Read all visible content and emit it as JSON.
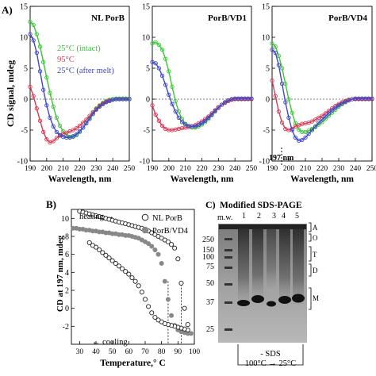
{
  "panelA": {
    "label": "A)",
    "ylabel": "CD signal, mdeg",
    "ylim": [
      -10,
      15
    ],
    "yticks": [
      "15",
      "10",
      "5",
      "0",
      "-5",
      "-10"
    ],
    "xlim": [
      190,
      250
    ],
    "xticks": [
      "190",
      "200",
      "210",
      "220",
      "230",
      "240",
      "250"
    ],
    "xlabel": "Wavelength, nm",
    "legend": [
      {
        "label": "25°C (intact)",
        "color": "#3cc43c"
      },
      {
        "label": "95°C",
        "color": "#d83a55"
      },
      {
        "label": "25°C (after melt)",
        "color": "#3f47c8"
      }
    ],
    "annotation": "197 nm",
    "plots": [
      {
        "title": "NL PorB"
      },
      {
        "title": "PorB/VD1"
      },
      {
        "title": "PorB/VD4"
      }
    ]
  },
  "panelB": {
    "label": "B)",
    "ylabel": "CD at 197 nm, mdeg",
    "xlabel": "Temperature,° C",
    "xticks": [
      "30",
      "40",
      "50",
      "60",
      "70",
      "80",
      "90",
      "100"
    ],
    "yticks": [
      "10",
      "8",
      "6",
      "4",
      "2",
      "0",
      "-2"
    ],
    "xlim": [
      25,
      100
    ],
    "ylim": [
      -4,
      11
    ],
    "heating_label": "heating →",
    "cooling_label": "← cooling",
    "legend": [
      {
        "label": "NL PorB",
        "marker": "open-circle"
      },
      {
        "label": "PorB/VD4",
        "marker": "filled-circle"
      }
    ]
  },
  "panelC": {
    "label": "C)",
    "title": "Modified SDS-PAGE",
    "lane_labels": [
      "m.w.",
      "1",
      "2",
      "3",
      "4",
      "5"
    ],
    "mw_markers": [
      "250",
      "150",
      "100",
      "75",
      "50",
      "37",
      "25"
    ],
    "bracket_labels": [
      "A",
      "O",
      "T",
      "D",
      "M"
    ],
    "condition_line1": "- SDS",
    "condition_line2": "100°C → 25°C"
  },
  "chart_data": [
    {
      "type": "line",
      "title": "NL PorB",
      "xlabel": "Wavelength, nm",
      "ylabel": "CD signal, mdeg",
      "xlim": [
        190,
        250
      ],
      "ylim": [
        -10,
        15
      ],
      "series": [
        {
          "name": "25°C (intact)",
          "x": [
            190,
            192,
            194,
            196,
            198,
            200,
            202,
            204,
            206,
            208,
            210,
            212,
            214,
            216,
            218,
            220,
            222,
            224,
            226,
            228,
            230,
            232,
            234,
            236,
            238,
            240,
            242,
            244,
            246,
            248,
            250
          ],
          "y": [
            12.5,
            12.0,
            10.5,
            8.5,
            6.0,
            3.5,
            1.0,
            -1.2,
            -3.0,
            -4.3,
            -5.2,
            -5.8,
            -6.1,
            -6.1,
            -5.8,
            -5.3,
            -4.6,
            -3.8,
            -3.0,
            -2.2,
            -1.5,
            -1.0,
            -0.6,
            -0.3,
            -0.1,
            0.0,
            0.1,
            0.1,
            0.1,
            0.1,
            0.1
          ]
        },
        {
          "name": "95°C",
          "x": [
            190,
            192,
            194,
            196,
            198,
            200,
            202,
            204,
            206,
            208,
            210,
            212,
            214,
            216,
            218,
            220,
            222,
            224,
            226,
            228,
            230,
            232,
            234,
            236,
            238,
            240,
            242,
            244,
            246,
            248,
            250
          ],
          "y": [
            2.0,
            0.5,
            -1.5,
            -3.5,
            -5.3,
            -6.5,
            -7.0,
            -6.8,
            -6.3,
            -5.9,
            -5.6,
            -5.4,
            -5.2,
            -5.0,
            -4.7,
            -4.3,
            -3.8,
            -3.3,
            -2.7,
            -2.1,
            -1.6,
            -1.1,
            -0.7,
            -0.4,
            -0.2,
            -0.1,
            0.0,
            0.0,
            0.0,
            0.0,
            0.0
          ]
        },
        {
          "name": "25°C (after melt)",
          "x": [
            190,
            192,
            194,
            196,
            198,
            200,
            202,
            204,
            206,
            208,
            210,
            212,
            214,
            216,
            218,
            220,
            222,
            224,
            226,
            228,
            230,
            232,
            234,
            236,
            238,
            240,
            242,
            244,
            246,
            248,
            250
          ],
          "y": [
            10.5,
            9.5,
            7.5,
            4.5,
            1.5,
            -1.0,
            -3.0,
            -4.4,
            -5.3,
            -5.8,
            -6.1,
            -6.2,
            -6.2,
            -6.0,
            -5.7,
            -5.2,
            -4.6,
            -3.9,
            -3.2,
            -2.4,
            -1.7,
            -1.2,
            -0.8,
            -0.5,
            -0.3,
            -0.1,
            0.0,
            0.0,
            0.0,
            0.0,
            0.0
          ]
        }
      ]
    },
    {
      "type": "line",
      "title": "PorB/VD1",
      "xlabel": "Wavelength, nm",
      "xlim": [
        190,
        250
      ],
      "ylim": [
        -10,
        15
      ],
      "series": [
        {
          "name": "25°C (intact)",
          "x": [
            190,
            192,
            194,
            196,
            198,
            200,
            202,
            204,
            206,
            208,
            210,
            212,
            214,
            216,
            218,
            220,
            222,
            224,
            226,
            228,
            230,
            232,
            234,
            236,
            238,
            240,
            242,
            244,
            246,
            248,
            250
          ],
          "y": [
            9.0,
            9.2,
            8.8,
            8.0,
            6.5,
            4.5,
            2.0,
            -0.3,
            -2.0,
            -3.2,
            -4.0,
            -4.5,
            -4.6,
            -4.6,
            -4.4,
            -4.1,
            -3.7,
            -3.2,
            -2.6,
            -2.0,
            -1.4,
            -0.9,
            -0.5,
            -0.2,
            0.0,
            0.1,
            0.1,
            0.1,
            0.1,
            0.1,
            0.1
          ]
        },
        {
          "name": "95°C",
          "x": [
            190,
            192,
            194,
            196,
            198,
            200,
            202,
            204,
            206,
            208,
            210,
            212,
            214,
            216,
            218,
            220,
            222,
            224,
            226,
            228,
            230,
            232,
            234,
            236,
            238,
            240,
            242,
            244,
            246,
            248,
            250
          ],
          "y": [
            -1.0,
            -2.5,
            -3.5,
            -4.3,
            -4.8,
            -5.0,
            -5.0,
            -4.9,
            -4.8,
            -4.7,
            -4.6,
            -4.5,
            -4.4,
            -4.2,
            -3.9,
            -3.6,
            -3.2,
            -2.8,
            -2.3,
            -1.8,
            -1.3,
            -0.9,
            -0.6,
            -0.3,
            -0.1,
            0.0,
            0.0,
            0.0,
            0.0,
            0.0,
            0.0
          ]
        },
        {
          "name": "25°C (after melt)",
          "x": [
            190,
            192,
            194,
            196,
            198,
            200,
            202,
            204,
            206,
            208,
            210,
            212,
            214,
            216,
            218,
            220,
            222,
            224,
            226,
            228,
            230,
            232,
            234,
            236,
            238,
            240,
            242,
            244,
            246,
            248,
            250
          ],
          "y": [
            6.0,
            5.8,
            5.0,
            3.8,
            2.3,
            0.7,
            -0.8,
            -2.0,
            -3.0,
            -3.7,
            -4.1,
            -4.3,
            -4.4,
            -4.4,
            -4.2,
            -3.9,
            -3.5,
            -3.0,
            -2.5,
            -1.9,
            -1.4,
            -0.9,
            -0.5,
            -0.2,
            0.0,
            0.1,
            0.1,
            0.1,
            0.1,
            0.1,
            0.1
          ]
        }
      ]
    },
    {
      "type": "line",
      "title": "PorB/VD4",
      "xlabel": "Wavelength, nm",
      "xlim": [
        190,
        250
      ],
      "ylim": [
        -10,
        15
      ],
      "series": [
        {
          "name": "25°C (intact)",
          "x": [
            190,
            192,
            194,
            196,
            198,
            200,
            202,
            204,
            206,
            208,
            210,
            212,
            214,
            216,
            218,
            220,
            222,
            224,
            226,
            228,
            230,
            232,
            234,
            236,
            238,
            240,
            242,
            244,
            246,
            248,
            250
          ],
          "y": [
            9.0,
            8.5,
            7.0,
            5.0,
            2.5,
            0.0,
            -2.2,
            -3.9,
            -4.9,
            -5.3,
            -5.3,
            -5.1,
            -4.8,
            -4.5,
            -4.1,
            -3.7,
            -3.2,
            -2.7,
            -2.2,
            -1.7,
            -1.2,
            -0.8,
            -0.5,
            -0.2,
            0.0,
            0.1,
            0.1,
            0.1,
            0.1,
            0.1,
            0.1
          ]
        },
        {
          "name": "95°C",
          "x": [
            190,
            192,
            194,
            196,
            198,
            200,
            202,
            204,
            206,
            208,
            210,
            212,
            214,
            216,
            218,
            220,
            222,
            224,
            226,
            228,
            230,
            232,
            234,
            236,
            238,
            240,
            242,
            244,
            246,
            248,
            250
          ],
          "y": [
            3.0,
            0.5,
            -2.0,
            -3.8,
            -4.8,
            -5.0,
            -4.8,
            -4.4,
            -4.2,
            -4.0,
            -3.9,
            -3.8,
            -3.6,
            -3.3,
            -3.0,
            -2.7,
            -2.3,
            -1.9,
            -1.5,
            -1.1,
            -0.8,
            -0.5,
            -0.3,
            -0.1,
            0.0,
            0.0,
            0.0,
            0.0,
            0.0,
            0.0,
            0.0
          ]
        },
        {
          "name": "25°C (after melt)",
          "x": [
            190,
            192,
            194,
            196,
            198,
            200,
            202,
            204,
            206,
            208,
            210,
            212,
            214,
            216,
            218,
            220,
            222,
            224,
            226,
            228,
            230,
            232,
            234,
            236,
            238,
            240,
            242,
            244,
            246,
            248,
            250
          ],
          "y": [
            8.0,
            7.5,
            5.5,
            2.5,
            -0.5,
            -3.0,
            -5.0,
            -6.2,
            -6.7,
            -6.6,
            -6.2,
            -5.6,
            -5.0,
            -4.4,
            -3.8,
            -3.3,
            -2.8,
            -2.3,
            -1.8,
            -1.4,
            -1.0,
            -0.7,
            -0.4,
            -0.2,
            0.0,
            0.1,
            0.1,
            0.1,
            0.1,
            0.1,
            0.1
          ]
        }
      ]
    },
    {
      "type": "scatter",
      "xlabel": "Temperature,° C",
      "ylabel": "CD at 197 nm, mdeg",
      "xlim": [
        25,
        100
      ],
      "ylim": [
        -4,
        11
      ],
      "series": [
        {
          "name": "NL PorB",
          "x": [
            30,
            32,
            34,
            36,
            38,
            40,
            42,
            44,
            46,
            48,
            50,
            52,
            54,
            56,
            58,
            60,
            62,
            64,
            66,
            68,
            70,
            72,
            74,
            76,
            78,
            80,
            82,
            84,
            86,
            88,
            90,
            92,
            94,
            96,
            96,
            94,
            92,
            90,
            88,
            86,
            84,
            82,
            80,
            78,
            76,
            74,
            72,
            70,
            68,
            66,
            64,
            62,
            60,
            58,
            56,
            54,
            52,
            50,
            48,
            46,
            44,
            42,
            40,
            38,
            36
          ],
          "y": [
            10.8,
            10.7,
            10.6,
            10.5,
            10.4,
            10.3,
            10.2,
            10.1,
            10.0,
            9.9,
            9.8,
            9.7,
            9.6,
            9.5,
            9.4,
            9.3,
            9.2,
            9.1,
            9.0,
            8.9,
            8.8,
            8.6,
            8.4,
            8.2,
            8.0,
            7.8,
            7.6,
            7.4,
            7.1,
            6.7,
            5.5,
            2.8,
            0.0,
            -1.8,
            -2.4,
            -2.3,
            -2.2,
            -2.1,
            -2.0,
            -1.9,
            -1.8,
            -1.7,
            -1.5,
            -1.3,
            -1.0,
            -0.5,
            0.2,
            1.0,
            1.8,
            2.5,
            3.0,
            3.4,
            3.8,
            4.1,
            4.4,
            4.7,
            5.0,
            5.3,
            5.6,
            5.9,
            6.2,
            6.5,
            6.8,
            7.0,
            7.3
          ]
        },
        {
          "name": "PorB/VD4",
          "x": [
            26,
            28,
            30,
            32,
            34,
            36,
            38,
            40,
            42,
            44,
            46,
            48,
            50,
            52,
            54,
            56,
            58,
            60,
            62,
            64,
            66,
            68,
            70,
            72,
            74,
            76,
            78,
            80,
            82,
            84,
            86,
            88,
            90,
            92,
            94,
            96,
            98
          ],
          "y": [
            8.9,
            8.9,
            8.8,
            8.8,
            8.7,
            8.7,
            8.6,
            8.6,
            8.5,
            8.5,
            8.4,
            8.4,
            8.3,
            8.3,
            8.2,
            8.2,
            8.1,
            8.1,
            8.0,
            7.9,
            7.8,
            7.6,
            7.4,
            7.2,
            6.9,
            6.5,
            6.0,
            5.0,
            3.0,
            1.0,
            -0.8,
            -1.9,
            -2.4,
            -2.6,
            -2.7,
            -2.8,
            -2.8
          ]
        }
      ]
    }
  ]
}
